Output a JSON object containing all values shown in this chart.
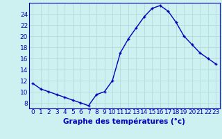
{
  "x": [
    0,
    1,
    2,
    3,
    4,
    5,
    6,
    7,
    8,
    9,
    10,
    11,
    12,
    13,
    14,
    15,
    16,
    17,
    18,
    19,
    20,
    21,
    22,
    23
  ],
  "y": [
    11.5,
    10.5,
    10.0,
    9.5,
    9.0,
    8.5,
    8.0,
    7.5,
    9.5,
    10.0,
    12.0,
    17.0,
    19.5,
    21.5,
    23.5,
    25.0,
    25.5,
    24.5,
    22.5,
    20.0,
    18.5,
    17.0,
    16.0,
    15.0
  ],
  "xlabel": "Graphe des températures (°c)",
  "bg_color": "#cdf0f0",
  "line_color": "#0000bb",
  "marker": "+",
  "ylim": [
    7,
    26
  ],
  "yticks": [
    8,
    10,
    12,
    14,
    16,
    18,
    20,
    22,
    24
  ],
  "xticks": [
    0,
    1,
    2,
    3,
    4,
    5,
    6,
    7,
    8,
    9,
    10,
    11,
    12,
    13,
    14,
    15,
    16,
    17,
    18,
    19,
    20,
    21,
    22,
    23
  ],
  "grid_color": "#b0d8d8",
  "line_width": 1.0,
  "marker_size": 3,
  "xlabel_fontsize": 7.5,
  "tick_fontsize": 6.5
}
